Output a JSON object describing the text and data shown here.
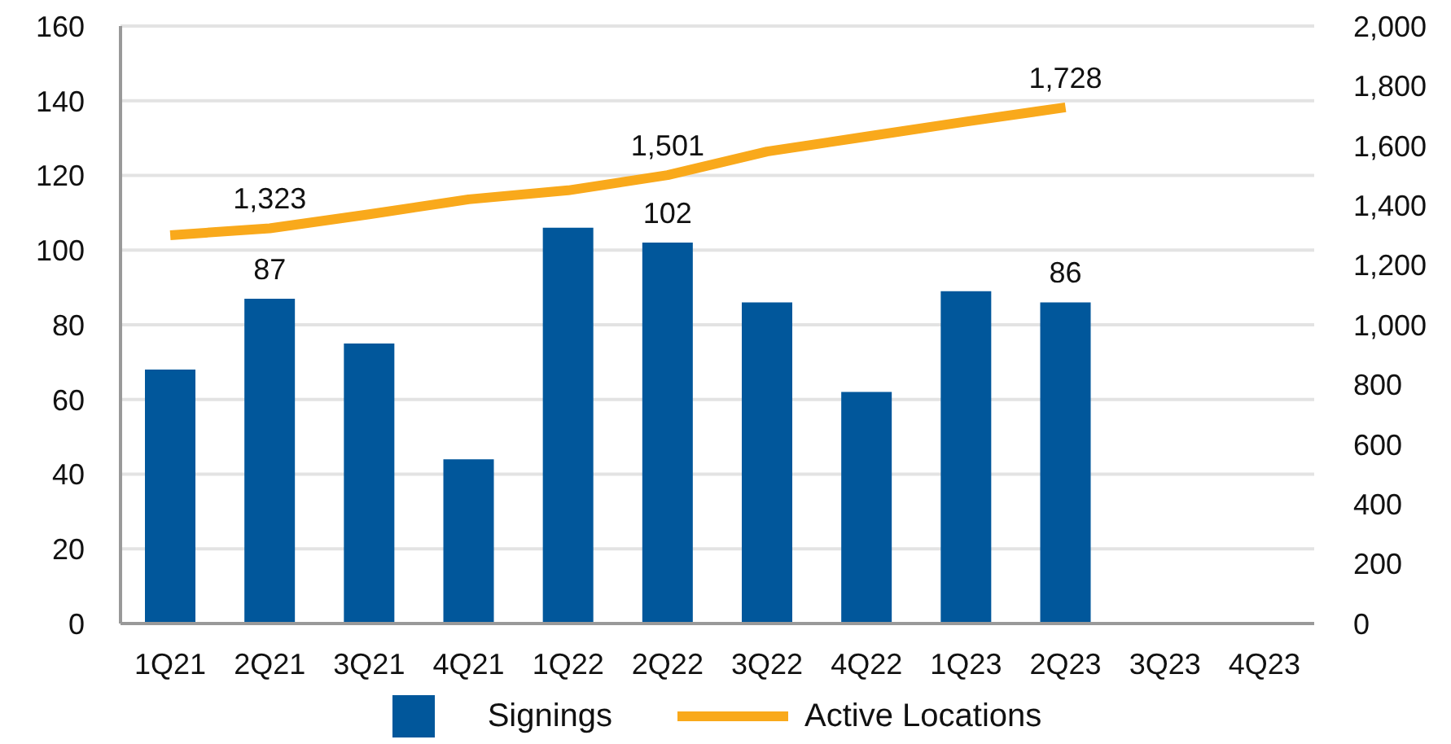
{
  "chart_data": {
    "type": "bar",
    "categories": [
      "1Q21",
      "2Q21",
      "3Q21",
      "4Q21",
      "1Q22",
      "2Q22",
      "3Q22",
      "4Q22",
      "1Q23",
      "2Q23",
      "3Q23",
      "4Q23"
    ],
    "series": [
      {
        "name": "Signings",
        "color": "#01579b",
        "values": [
          68,
          87,
          75,
          44,
          106,
          102,
          86,
          62,
          89,
          86,
          null,
          null
        ],
        "value_labels": [
          null,
          "87",
          null,
          null,
          null,
          "102",
          null,
          null,
          null,
          "86",
          null,
          null
        ]
      },
      {
        "name": "Active Locations",
        "type": "line",
        "axis": "y2",
        "color": "#f9a91b",
        "values": [
          1300,
          1323,
          1370,
          1420,
          1450,
          1501,
          1580,
          1630,
          1680,
          1728,
          null,
          null
        ],
        "value_labels": [
          null,
          "1,323",
          null,
          null,
          null,
          "1,501",
          null,
          null,
          null,
          "1,728",
          null,
          null
        ]
      }
    ],
    "ylim": [
      0,
      160
    ],
    "yticks": [
      0,
      20,
      40,
      60,
      80,
      100,
      120,
      140,
      160
    ],
    "y2lim": [
      0,
      2000
    ],
    "y2ticks": [
      {
        "value": 0,
        "label": "0"
      },
      {
        "value": 200,
        "label": "200"
      },
      {
        "value": 400,
        "label": "400"
      },
      {
        "value": 600,
        "label": "600"
      },
      {
        "value": 800,
        "label": "800"
      },
      {
        "value": 1000,
        "label": "1,000"
      },
      {
        "value": 1200,
        "label": "1,200"
      },
      {
        "value": 1400,
        "label": "1,400"
      },
      {
        "value": 1600,
        "label": "1,600"
      },
      {
        "value": 1800,
        "label": "1,800"
      },
      {
        "value": 2000,
        "label": "2,000"
      }
    ],
    "grid": "y",
    "legend": "bottom",
    "marker": "none"
  }
}
